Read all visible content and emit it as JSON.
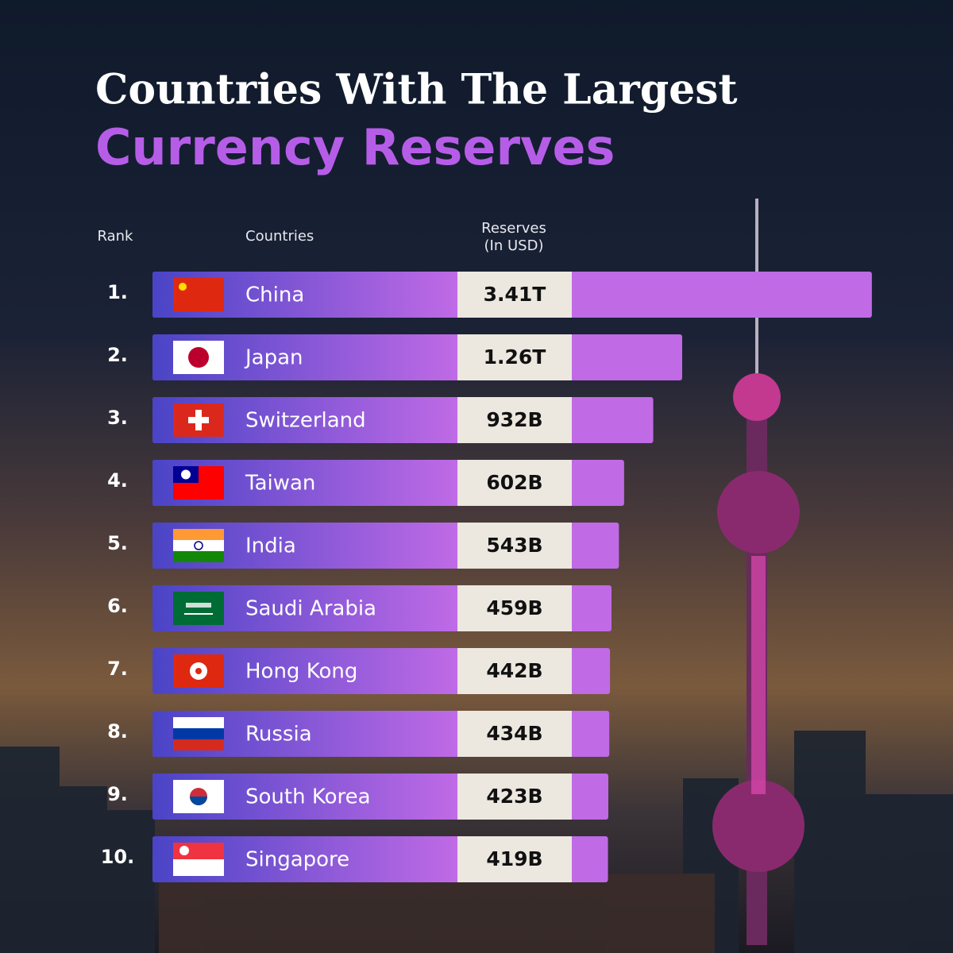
{
  "chart_data": {
    "type": "bar",
    "title": "Countries With The Largest",
    "subtitle": "Currency Reserves",
    "header_rank": "Rank",
    "header_countries": "Countries",
    "header_reserves": [
      "Reserves",
      "(In USD)"
    ],
    "ranks": [
      "1.",
      "2.",
      "3.",
      "4.",
      "5.",
      "6.",
      "7.",
      "8.",
      "9.",
      "10."
    ],
    "categories": [
      "China",
      "Japan",
      "Switzerland",
      "Taiwan",
      "India",
      "Saudi Arabia",
      "Hong Kong",
      "Russia",
      "South Korea",
      "Singapore"
    ],
    "values": [
      3410,
      1260,
      932,
      602,
      543,
      459,
      442,
      434,
      423,
      419
    ],
    "value_labels": [
      "3.41T",
      "1.26T",
      "932B",
      "602B",
      "543B",
      "459B",
      "442B",
      "434B",
      "423B",
      "419B"
    ],
    "color": "#c06ae6"
  }
}
